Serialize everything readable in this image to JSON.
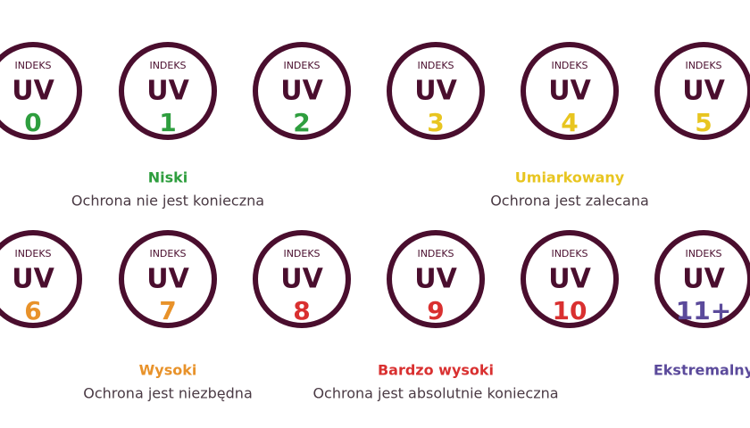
{
  "items": [
    {
      "label": "INDEKS",
      "unit": "UV",
      "value": "0",
      "color": "#2e9e3e"
    },
    {
      "label": "INDEKS",
      "unit": "UV",
      "value": "1",
      "color": "#2e9e3e"
    },
    {
      "label": "INDEKS",
      "unit": "UV",
      "value": "2",
      "color": "#2e9e3e"
    },
    {
      "label": "INDEKS",
      "unit": "UV",
      "value": "3",
      "color": "#e8c520"
    },
    {
      "label": "INDEKS",
      "unit": "UV",
      "value": "4",
      "color": "#e8c520"
    },
    {
      "label": "INDEKS",
      "unit": "UV",
      "value": "5",
      "color": "#e8c520"
    },
    {
      "label": "INDEKS",
      "unit": "UV",
      "value": "6",
      "color": "#e8922a"
    },
    {
      "label": "INDEKS",
      "unit": "UV",
      "value": "7",
      "color": "#e8922a"
    },
    {
      "label": "INDEKS",
      "unit": "UV",
      "value": "8",
      "color": "#d93030"
    },
    {
      "label": "INDEKS",
      "unit": "UV",
      "value": "9",
      "color": "#d93030"
    },
    {
      "label": "INDEKS",
      "unit": "UV",
      "value": "10",
      "color": "#d93030"
    },
    {
      "label": "INDEKS",
      "unit": "UV",
      "value": "11+",
      "color": "#5b4a9b"
    }
  ],
  "groups": [
    {
      "name": "Niski",
      "description": "Ochrona nie jest konieczna",
      "color": "#2e9e3e"
    },
    {
      "name": "Umiarkowany",
      "description": "Ochrona jest zalecana",
      "color": "#e8c520"
    },
    {
      "name": "Wysoki",
      "description": "Ochrona jest niezbędna",
      "color": "#e8922a"
    },
    {
      "name": "Bardzo wysoki",
      "description": "Ochrona jest absolutnie konieczna",
      "color": "#d93030"
    },
    {
      "name": "Ekstremalny",
      "color": "#5b4a9b"
    }
  ]
}
